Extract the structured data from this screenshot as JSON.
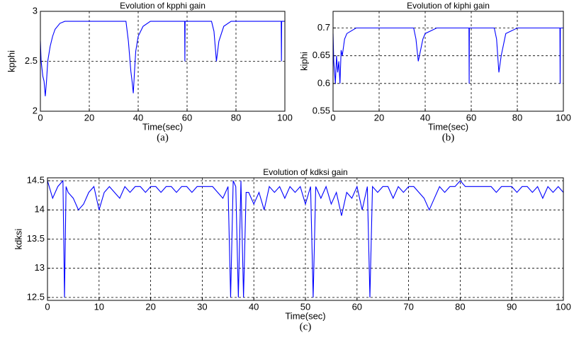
{
  "chart_data": [
    {
      "type": "line",
      "title": "Evolution of kpphi gain",
      "xlabel": "Time(sec)",
      "ylabel": "kpphi",
      "caption": "(a)",
      "x": [
        0,
        0.3,
        1,
        1.5,
        2,
        2.5,
        3,
        4,
        5,
        6,
        8,
        10,
        12,
        20,
        30,
        35,
        36,
        37,
        37.5,
        38,
        38.5,
        39,
        40,
        42,
        45,
        50,
        59,
        59.1,
        59.2,
        60,
        65,
        70,
        71,
        72,
        73,
        75,
        78,
        80,
        90,
        98.5,
        98.6,
        98.7,
        100
      ],
      "values": [
        2.7,
        2.5,
        2.35,
        2.3,
        2.15,
        2.3,
        2.5,
        2.65,
        2.75,
        2.82,
        2.88,
        2.9,
        2.9,
        2.9,
        2.9,
        2.9,
        2.7,
        2.4,
        2.3,
        2.18,
        2.4,
        2.6,
        2.75,
        2.85,
        2.9,
        2.9,
        2.9,
        2.5,
        2.9,
        2.9,
        2.9,
        2.9,
        2.8,
        2.5,
        2.7,
        2.85,
        2.9,
        2.9,
        2.9,
        2.9,
        2.5,
        2.9,
        2.9
      ],
      "color": "#0000ff",
      "xlim": [
        0,
        100
      ],
      "ylim": [
        2,
        3
      ],
      "xticks": [
        0,
        20,
        40,
        60,
        80,
        100
      ],
      "yticks": [
        2,
        2.5,
        3
      ],
      "grid": true
    },
    {
      "type": "line",
      "title": "Evolution of kiphi gain",
      "xlabel": "Time(sec)",
      "ylabel": "kiphi",
      "caption": "(b)",
      "x": [
        0,
        0.3,
        1,
        1.5,
        2,
        2.5,
        3,
        3.5,
        4,
        5,
        6,
        8,
        10,
        20,
        35,
        36,
        37,
        38,
        39,
        40,
        45,
        59,
        59.1,
        59.2,
        60,
        70,
        71,
        72,
        73,
        75,
        80,
        98.5,
        98.6,
        98.7,
        100
      ],
      "values": [
        0.69,
        0.64,
        0.6,
        0.65,
        0.62,
        0.64,
        0.6,
        0.66,
        0.65,
        0.68,
        0.69,
        0.695,
        0.7,
        0.7,
        0.7,
        0.68,
        0.64,
        0.66,
        0.68,
        0.69,
        0.7,
        0.7,
        0.6,
        0.7,
        0.7,
        0.7,
        0.68,
        0.62,
        0.65,
        0.69,
        0.7,
        0.7,
        0.6,
        0.7,
        0.7
      ],
      "color": "#0000ff",
      "xlim": [
        0,
        100
      ],
      "ylim": [
        0.55,
        0.73
      ],
      "xticks": [
        0,
        20,
        40,
        60,
        80,
        100
      ],
      "yticks": [
        0.55,
        0.6,
        0.65,
        0.7
      ],
      "grid": true
    },
    {
      "type": "line",
      "title": "Evolution of kdksi gain",
      "xlabel": "Time(sec)",
      "ylabel": "kdksi",
      "caption": "(c)",
      "x": [
        0,
        1,
        2,
        3,
        3.3,
        3.6,
        4,
        5,
        6,
        7,
        8,
        9,
        10,
        11,
        12,
        13,
        14,
        15,
        16,
        17,
        18,
        19,
        20,
        21,
        22,
        23,
        24,
        25,
        26,
        27,
        28,
        29,
        30,
        31,
        32,
        33,
        34,
        35,
        35.5,
        36,
        36.5,
        37,
        37.5,
        38,
        38.5,
        39,
        40,
        41,
        42,
        43,
        44,
        45,
        46,
        47,
        48,
        49,
        50,
        51,
        51.5,
        52,
        53,
        54,
        55,
        56,
        57,
        58,
        59,
        60,
        61,
        62,
        62.5,
        63,
        64,
        65,
        66,
        67,
        68,
        69,
        70,
        71,
        72,
        73,
        74,
        75,
        76,
        77,
        78,
        79,
        80,
        81,
        82,
        83,
        84,
        85,
        86,
        87,
        88,
        89,
        90,
        91,
        92,
        93,
        94,
        95,
        96,
        97,
        98,
        99,
        100
      ],
      "values": [
        14.5,
        14.2,
        14.4,
        14.5,
        12.5,
        14.4,
        14.3,
        14.2,
        14.0,
        14.1,
        14.3,
        14.4,
        14.0,
        14.3,
        14.4,
        14.3,
        14.2,
        14.4,
        14.3,
        14.4,
        14.4,
        14.3,
        14.4,
        14.4,
        14.3,
        14.4,
        14.4,
        14.3,
        14.4,
        14.4,
        14.3,
        14.4,
        14.4,
        14.4,
        14.4,
        14.3,
        14.2,
        14.4,
        12.5,
        14.5,
        14.4,
        12.5,
        14.5,
        12.5,
        14.3,
        14.3,
        14.1,
        14.3,
        14.0,
        14.4,
        14.3,
        14.4,
        14.2,
        14.4,
        14.3,
        14.4,
        14.1,
        14.4,
        12.5,
        14.4,
        14.2,
        14.4,
        14.1,
        14.3,
        13.9,
        14.3,
        14.2,
        14.4,
        14.0,
        14.4,
        12.5,
        14.4,
        14.3,
        14.4,
        14.4,
        14.2,
        14.4,
        14.3,
        14.4,
        14.4,
        14.3,
        14.2,
        14.0,
        14.2,
        14.4,
        14.3,
        14.4,
        14.4,
        14.5,
        14.4,
        14.4,
        14.4,
        14.4,
        14.4,
        14.4,
        14.3,
        14.4,
        14.4,
        14.4,
        14.3,
        14.4,
        14.4,
        14.3,
        14.4,
        14.2,
        14.4,
        14.3,
        14.4,
        14.3
      ],
      "color": "#0000ff",
      "xlim": [
        0,
        100
      ],
      "ylim": [
        12.45,
        14.55
      ],
      "xticks": [
        0,
        10,
        20,
        30,
        40,
        50,
        60,
        70,
        80,
        90,
        100
      ],
      "yticks": [
        12.5,
        13,
        13.5,
        14,
        14.5
      ],
      "grid": true
    }
  ]
}
